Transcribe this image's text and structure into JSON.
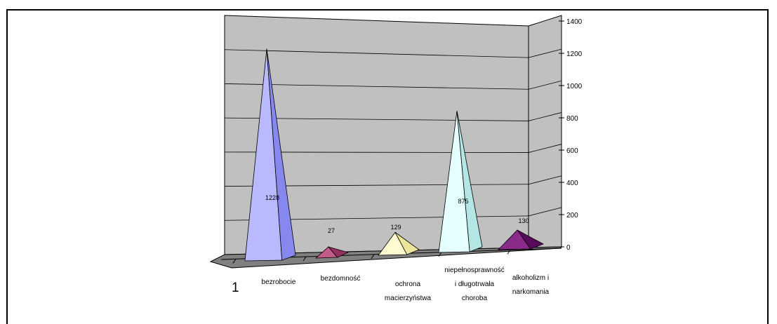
{
  "chart_data": {
    "type": "bar",
    "style": "3d-pyramid",
    "series_label": "1",
    "categories": [
      [
        "bezrobocie"
      ],
      [
        "bezdomność"
      ],
      [
        "ochrona",
        "macierzyństwa"
      ],
      [
        "niepełnosprawność",
        "i długotrwała",
        "choroba"
      ],
      [
        "alkoholizm i",
        "narkomania"
      ]
    ],
    "values": [
      1228,
      27,
      129,
      875,
      130
    ],
    "ylim": [
      0,
      1400
    ],
    "yticks": [
      "0",
      "200",
      "400",
      "600",
      "800",
      "1000",
      "1200",
      "1400"
    ],
    "grid": true,
    "colors": {
      "wall": "#c0c0c0",
      "floor": "#808080",
      "pyramids": [
        {
          "left": "#b9b9ff",
          "right": "#8787f0"
        },
        {
          "left": "#c25a8a",
          "right": "#96305f"
        },
        {
          "left": "#fffbd0",
          "right": "#ebe49b"
        },
        {
          "left": "#e5ffff",
          "right": "#b5e6e6"
        },
        {
          "left": "#8a2b8a",
          "right": "#5a0a5a"
        }
      ]
    }
  }
}
